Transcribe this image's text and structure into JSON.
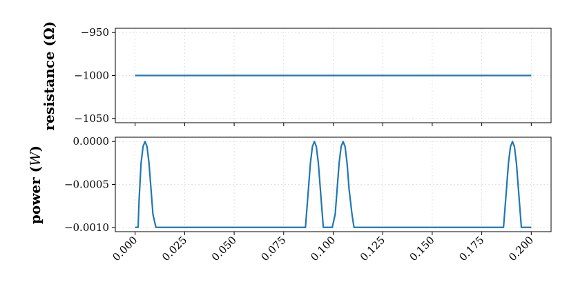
{
  "chart_data": [
    {
      "type": "line",
      "ylabel": "resistance (Ω)",
      "ylim": [
        -1055,
        -945
      ],
      "yticks": [
        -950,
        -1000,
        -1050
      ],
      "ytick_labels": [
        "−950",
        "−1000",
        "−1050"
      ],
      "xlim": [
        -0.01,
        0.21
      ],
      "grid": true,
      "series": [
        {
          "color": "#1f77b4",
          "x": [
            0.0,
            0.2
          ],
          "y": [
            -1000,
            -1000
          ]
        }
      ]
    },
    {
      "type": "line",
      "ylabel_prefix": "power (",
      "ylabel_unit": "W",
      "ylabel_suffix": ")",
      "ylim": [
        -0.00105,
        5e-05
      ],
      "yticks": [
        0.0,
        -0.0005,
        -0.001
      ],
      "ytick_labels": [
        "0.0000",
        "−0.0005",
        "−0.0010"
      ],
      "xlim": [
        -0.01,
        0.21
      ],
      "xticks": [
        0.0,
        0.025,
        0.05,
        0.075,
        0.1,
        0.125,
        0.15,
        0.175,
        0.2
      ],
      "xtick_labels": [
        "0.000",
        "0.025",
        "0.050",
        "0.075",
        "0.100",
        "0.125",
        "0.150",
        "0.175",
        "0.200"
      ],
      "grid": true,
      "series": [
        {
          "color": "#1f77b4",
          "x": [
            0.0,
            0.0015,
            0.002,
            0.003,
            0.004,
            0.005,
            0.006,
            0.007,
            0.008,
            0.009,
            0.0105,
            0.011,
            0.086,
            0.0865,
            0.0875,
            0.0885,
            0.0895,
            0.0905,
            0.0915,
            0.0925,
            0.0935,
            0.0945,
            0.095,
            0.0955,
            0.0995,
            0.101,
            0.102,
            0.103,
            0.104,
            0.105,
            0.106,
            0.107,
            0.108,
            0.1095,
            0.1105,
            0.111,
            0.186,
            0.1865,
            0.1875,
            0.1885,
            0.1895,
            0.1905,
            0.1915,
            0.1925,
            0.1935,
            0.1945,
            0.195,
            0.2
          ],
          "y": [
            -0.001,
            -0.001,
            -0.00068,
            -0.00025,
            -6e-05,
            0.0,
            -6e-05,
            -0.00025,
            -0.00055,
            -0.00085,
            -0.001,
            -0.001,
            -0.001,
            -0.00085,
            -0.00055,
            -0.00025,
            -6e-05,
            0.0,
            -6e-05,
            -0.00025,
            -0.00055,
            -0.00085,
            -0.001,
            -0.001,
            -0.001,
            -0.00085,
            -0.00055,
            -0.00025,
            -6e-05,
            0.0,
            -6e-05,
            -0.00025,
            -0.00055,
            -0.00085,
            -0.001,
            -0.001,
            -0.001,
            -0.00085,
            -0.00055,
            -0.00025,
            -6e-05,
            0.0,
            -6e-05,
            -0.00025,
            -0.00055,
            -0.00085,
            -0.001,
            -0.001
          ]
        }
      ]
    }
  ]
}
